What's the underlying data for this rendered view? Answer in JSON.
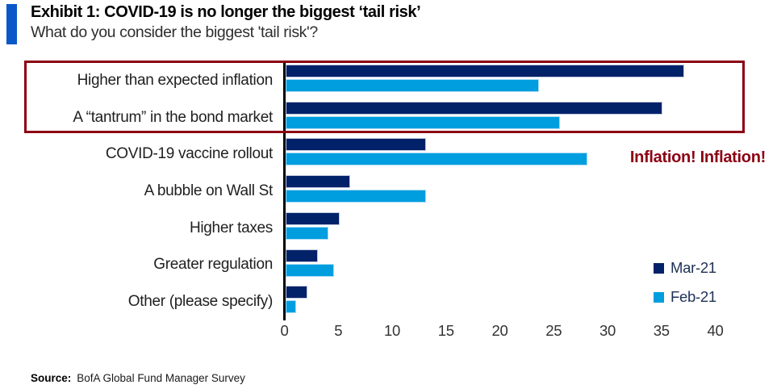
{
  "header": {
    "title": "Exhibit 1: COVID-19 is no longer the biggest ‘tail risk’",
    "subtitle": "What do you consider the biggest 'tail risk'?"
  },
  "chart_data": {
    "type": "bar",
    "orientation": "horizontal",
    "title": "Exhibit 1: COVID-19 is no longer the biggest ‘tail risk’",
    "subtitle": "What do you consider the biggest 'tail risk'?",
    "categories": [
      "Higher than expected inflation",
      "A “tantrum” in the bond market",
      "COVID-19 vaccine rollout",
      "A bubble on Wall St",
      "Higher taxes",
      "Greater regulation",
      "Other (please specify)"
    ],
    "series": [
      {
        "name": "Mar-21",
        "color": "#012169",
        "values": [
          37,
          35,
          13,
          6,
          5,
          3,
          2
        ]
      },
      {
        "name": "Feb-21",
        "color": "#009ddf",
        "values": [
          23.5,
          25.5,
          28,
          13,
          4,
          4.5,
          1
        ]
      }
    ],
    "xlim": [
      0,
      40
    ],
    "xticks": [
      0,
      5,
      10,
      15,
      20,
      25,
      30,
      35,
      40
    ],
    "grid": false,
    "legend_position": "right",
    "annotation": "Inflation! Inflation!",
    "highlighted_categories": [
      "Higher than expected inflation",
      "A “tantrum” in the bond market"
    ]
  },
  "colors": {
    "accent_blue": "#0b57c9",
    "navy": "#012169",
    "light_blue": "#009ddf",
    "highlight_red": "#8b0013"
  },
  "source": {
    "label": "Source:",
    "text": "BofA Global Fund Manager Survey"
  }
}
